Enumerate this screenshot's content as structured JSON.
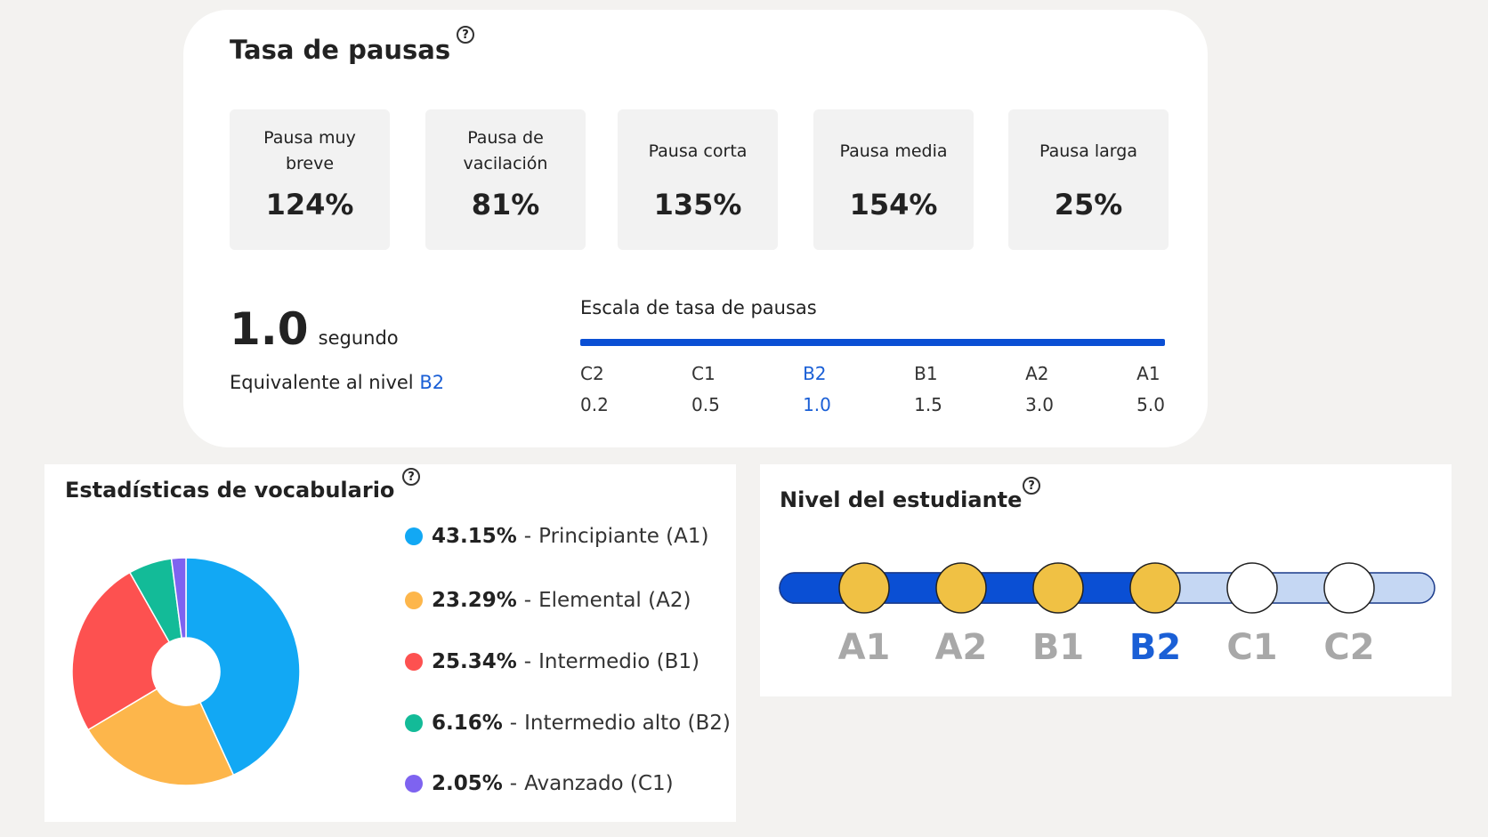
{
  "help_icon": "?",
  "pause_panel": {
    "title": "Tasa de pausas",
    "cards": [
      {
        "label": "Pausa muy breve",
        "value": "124%"
      },
      {
        "label": "Pausa de vacilación",
        "value": "81%"
      },
      {
        "label": "Pausa corta",
        "value": "135%"
      },
      {
        "label": "Pausa media",
        "value": "154%"
      },
      {
        "label": "Pausa larga",
        "value": "25%"
      }
    ],
    "current": {
      "value": "1.0",
      "unit": "segundo",
      "equivalent": "Equivalente al nivel",
      "level": "B2"
    },
    "scale": {
      "title": "Escala de tasa de pausas",
      "levels": [
        "C2",
        "C1",
        "B2",
        "B1",
        "A2",
        "A1"
      ],
      "values": [
        "0.2",
        "0.5",
        "1.0",
        "1.5",
        "3.0",
        "5.0"
      ]
    }
  },
  "chart_data": {
    "type": "pie",
    "title": "Estadísticas de vocabulario",
    "categories": [
      "Principiante (A1)",
      "Elemental (A2)",
      "Intermedio (B1)",
      "Intermedio alto (B2)",
      "Avanzado (C1)"
    ],
    "values": [
      43.15,
      23.29,
      25.34,
      6.16,
      2.05
    ],
    "value_labels": [
      "43.15%",
      "23.29%",
      "25.34%",
      "6.16%",
      "2.05%"
    ],
    "colors": [
      "#12a8f4",
      "#fdb64b",
      "#fd5150",
      "#13bb98",
      "#7e63f0"
    ]
  },
  "level_panel": {
    "title": "Nivel del estudiante",
    "levels": [
      "A1",
      "A2",
      "B1",
      "B2",
      "C1",
      "C2"
    ],
    "current": "B2"
  }
}
